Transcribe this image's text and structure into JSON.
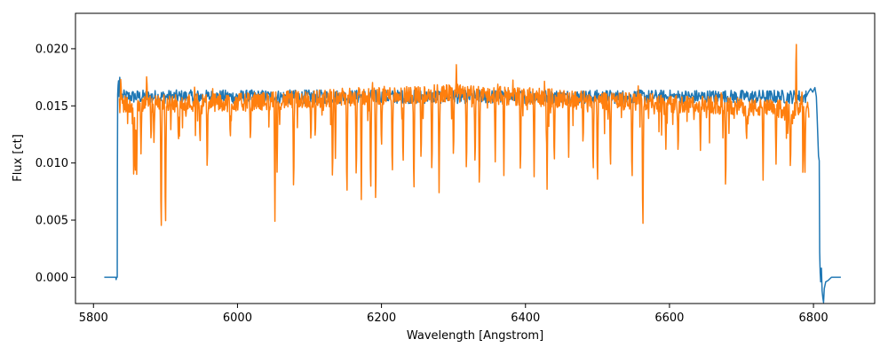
{
  "chart_data": {
    "type": "line",
    "title": "",
    "xlabel": "Wavelength [Angstrom]",
    "ylabel": "Flux [ct]",
    "xlim": [
      5775,
      6885
    ],
    "ylim": [
      -0.0023,
      0.0231
    ],
    "x_ticks": [
      5800,
      6000,
      6200,
      6400,
      6600,
      6800
    ],
    "x_tick_labels": [
      "5800",
      "6000",
      "6200",
      "6400",
      "6600",
      "6800"
    ],
    "y_ticks": [
      0.0,
      0.005,
      0.01,
      0.015,
      0.02
    ],
    "y_tick_labels": [
      "0.000",
      "0.005",
      "0.010",
      "0.015",
      "0.020"
    ],
    "grid": false,
    "legend": "none",
    "series": [
      {
        "color": "#1f77b4",
        "profile": [
          [
            5815,
            0.0
          ],
          [
            5831,
            0.0
          ],
          [
            5831.5,
            -0.0002
          ],
          [
            5832,
            0.0
          ],
          [
            5833,
            0.0
          ],
          [
            5833.2,
            0.0088
          ],
          [
            5833.6,
            0.016
          ],
          [
            5834.2,
            0.0168
          ],
          [
            5834.8,
            0.0172
          ],
          [
            5835.5,
            0.0158
          ],
          [
            5836.5,
            0.0175
          ],
          [
            5837.5,
            0.0162
          ],
          [
            5840,
            0.0158
          ],
          [
            6790,
            0.0158
          ],
          [
            6793,
            0.0162
          ],
          [
            6796,
            0.0165
          ],
          [
            6799,
            0.0162
          ],
          [
            6802,
            0.0166
          ],
          [
            6804,
            0.0158
          ],
          [
            6805,
            0.0142
          ],
          [
            6806,
            0.0124
          ],
          [
            6807,
            0.0106
          ],
          [
            6808,
            0.0102
          ],
          [
            6808.6,
            0.0022
          ],
          [
            6809.3,
            0.0004
          ],
          [
            6810,
            -0.0004
          ],
          [
            6811,
            0.0008
          ],
          [
            6812,
            -0.0012
          ],
          [
            6813,
            -0.0018
          ],
          [
            6814,
            -0.0022
          ],
          [
            6815,
            -0.001
          ],
          [
            6817,
            -0.0004
          ],
          [
            6820,
            -0.0003
          ],
          [
            6825,
            0.0
          ],
          [
            6838,
            0.0
          ]
        ]
      },
      {
        "color": "#ff7f0e",
        "x_range": [
          5836,
          6794
        ],
        "continuum": [
          [
            5836,
            0.0152
          ],
          [
            6000,
            0.0153
          ],
          [
            6100,
            0.0156
          ],
          [
            6200,
            0.0159
          ],
          [
            6300,
            0.0161
          ],
          [
            6400,
            0.0158
          ],
          [
            6500,
            0.0155
          ],
          [
            6600,
            0.0152
          ],
          [
            6700,
            0.0149
          ],
          [
            6794,
            0.0146
          ]
        ],
        "absorption_lines": [
          [
            5856,
            0.0078
          ],
          [
            5858,
            0.0082
          ],
          [
            5860,
            0.009
          ],
          [
            5866,
            0.0108
          ],
          [
            5880,
            0.0116
          ],
          [
            5884,
            0.0118
          ],
          [
            5894,
            0.0024
          ],
          [
            5900,
            0.0029
          ],
          [
            5918,
            0.0115
          ],
          [
            5948,
            0.0113
          ],
          [
            5958,
            0.0087
          ],
          [
            5990,
            0.0118
          ],
          [
            6018,
            0.0116
          ],
          [
            6052,
            0.0049
          ],
          [
            6055,
            0.0092
          ],
          [
            6078,
            0.0066
          ],
          [
            6102,
            0.0115
          ],
          [
            6108,
            0.0118
          ],
          [
            6132,
            0.0076
          ],
          [
            6136,
            0.0104
          ],
          [
            6152,
            0.006
          ],
          [
            6165,
            0.0078
          ],
          [
            6172,
            0.0068
          ],
          [
            6185,
            0.0064
          ],
          [
            6192,
            0.0052
          ],
          [
            6200,
            0.0108
          ],
          [
            6215,
            0.0081
          ],
          [
            6230,
            0.0091
          ],
          [
            6245,
            0.0063
          ],
          [
            6255,
            0.0095
          ],
          [
            6270,
            0.0083
          ],
          [
            6280,
            0.0074
          ],
          [
            6300,
            0.0098
          ],
          [
            6318,
            0.0084
          ],
          [
            6330,
            0.0091
          ],
          [
            6336,
            0.0068
          ],
          [
            6358,
            0.0101
          ],
          [
            6370,
            0.0089
          ],
          [
            6393,
            0.0083
          ],
          [
            6412,
            0.0088
          ],
          [
            6430,
            0.0077
          ],
          [
            6440,
            0.0093
          ],
          [
            6460,
            0.0105
          ],
          [
            6480,
            0.0112
          ],
          [
            6494,
            0.0084
          ],
          [
            6500,
            0.0072
          ],
          [
            6518,
            0.0088
          ],
          [
            6548,
            0.0076
          ],
          [
            6563,
            0.0026
          ],
          [
            6595,
            0.0112
          ],
          [
            6612,
            0.0104
          ],
          [
            6643,
            0.0111
          ],
          [
            6678,
            0.0068
          ],
          [
            6707,
            0.0116
          ],
          [
            6730,
            0.0085
          ],
          [
            6748,
            0.0099
          ],
          [
            6768,
            0.0088
          ],
          [
            6785,
            0.0081
          ],
          [
            6788,
            0.0081
          ]
        ],
        "emission_spikes": [
          [
            5874,
            0.0182
          ],
          [
            5838,
            0.0179
          ],
          [
            6304,
            0.0186
          ],
          [
            6776,
            0.022
          ],
          [
            6784,
            0.0162
          ]
        ]
      }
    ]
  }
}
